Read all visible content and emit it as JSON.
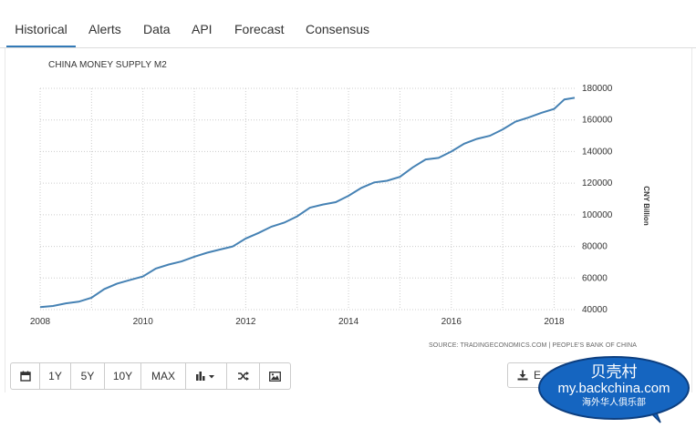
{
  "tabs": [
    {
      "label": "Historical",
      "active": true
    },
    {
      "label": "Alerts",
      "active": false
    },
    {
      "label": "Data",
      "active": false
    },
    {
      "label": "API",
      "active": false
    },
    {
      "label": "Forecast",
      "active": false
    },
    {
      "label": "Consensus",
      "active": false
    }
  ],
  "toolbar": {
    "range_buttons": [
      "1Y",
      "5Y",
      "10Y",
      "MAX"
    ],
    "icons": [
      "calendar-icon",
      "bar-chart-icon",
      "shuffle-icon",
      "image-icon"
    ],
    "export_label": "E"
  },
  "watermark": {
    "line1": "贝壳村",
    "line2": "my.backchina.com",
    "line3": "海外华人俱乐部"
  },
  "colors": {
    "line": "#4682b4",
    "tab_underline": "#337ab7",
    "watermark_fill": "#1565c0"
  },
  "chart_data": {
    "type": "line",
    "title": "CHINA MONEY SUPPLY M2",
    "ylabel": "CNY Billion",
    "source": "SOURCE: TRADINGECONOMICS.COM | PEOPLE'S BANK OF CHINA",
    "xlim": [
      2008.0,
      2018.4
    ],
    "ylim": [
      40000,
      180000
    ],
    "x_ticks": [
      "2008",
      "2010",
      "2012",
      "2014",
      "2016",
      "2018"
    ],
    "y_ticks": [
      "40000",
      "60000",
      "80000",
      "100000",
      "120000",
      "140000",
      "160000",
      "180000"
    ],
    "grid": true,
    "series": [
      {
        "x": [
          2008.0,
          2008.25,
          2008.5,
          2008.75,
          2009.0,
          2009.25,
          2009.5,
          2009.75,
          2010.0,
          2010.25,
          2010.5,
          2010.75,
          2011.0,
          2011.25,
          2011.5,
          2011.75,
          2012.0,
          2012.25,
          2012.5,
          2012.75,
          2013.0,
          2013.25,
          2013.5,
          2013.75,
          2014.0,
          2014.25,
          2014.5,
          2014.75,
          2015.0,
          2015.25,
          2015.5,
          2015.75,
          2016.0,
          2016.25,
          2016.5,
          2016.75,
          2017.0,
          2017.25,
          2017.5,
          2017.75,
          2018.0,
          2018.2,
          2018.4
        ],
        "y": [
          41600,
          42300,
          44000,
          45000,
          47500,
          53000,
          56500,
          58800,
          61000,
          66000,
          68500,
          70500,
          73500,
          76000,
          78000,
          80000,
          85000,
          88500,
          92500,
          95000,
          99000,
          104500,
          106500,
          108000,
          112000,
          117000,
          120500,
          121500,
          124000,
          130000,
          135000,
          136000,
          140000,
          145000,
          148000,
          150000,
          154000,
          159000,
          161500,
          164500,
          167000,
          173000,
          174000
        ]
      }
    ]
  }
}
